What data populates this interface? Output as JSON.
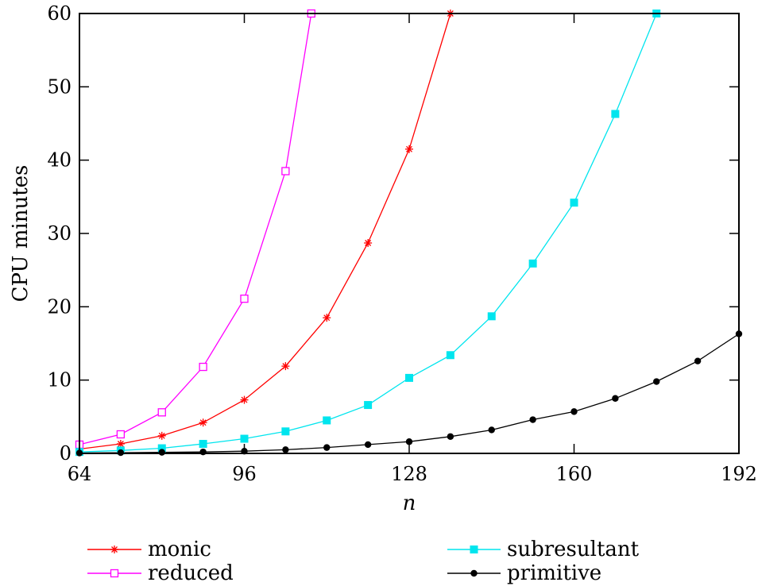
{
  "chart_data": {
    "type": "line",
    "title": "",
    "xlabel": "n",
    "ylabel": "CPU minutes",
    "xlim": [
      64,
      192
    ],
    "ylim": [
      0,
      60
    ],
    "xticks": [
      64,
      96,
      128,
      160,
      192
    ],
    "yticks": [
      0,
      10,
      20,
      30,
      40,
      50,
      60
    ],
    "grid": false,
    "legend_position": "bottom",
    "series": [
      {
        "name": "monic",
        "color": "#ff0000",
        "marker": "asterisk",
        "x": [
          64,
          72,
          80,
          88,
          96,
          104,
          112,
          120,
          128,
          136
        ],
        "y": [
          0.6,
          1.3,
          2.4,
          4.2,
          7.3,
          11.9,
          18.5,
          28.7,
          41.5,
          60
        ]
      },
      {
        "name": "reduced",
        "color": "#ff00ff",
        "marker": "open-square",
        "x": [
          64,
          72,
          80,
          88,
          96,
          104,
          109
        ],
        "y": [
          1.2,
          2.6,
          5.6,
          11.8,
          21.1,
          38.5,
          60
        ]
      },
      {
        "name": "subresultant",
        "color": "#00e5ee",
        "marker": "filled-square",
        "x": [
          64,
          72,
          80,
          88,
          96,
          104,
          112,
          120,
          128,
          136,
          144,
          152,
          160,
          168,
          176
        ],
        "y": [
          0.2,
          0.4,
          0.7,
          1.3,
          2.0,
          3.0,
          4.5,
          6.6,
          10.3,
          13.4,
          18.7,
          25.9,
          34.2,
          46.3,
          60
        ]
      },
      {
        "name": "primitive",
        "color": "#000000",
        "marker": "filled-circle",
        "x": [
          64,
          72,
          80,
          88,
          96,
          104,
          112,
          120,
          128,
          136,
          144,
          152,
          160,
          168,
          176,
          184,
          192
        ],
        "y": [
          0.05,
          0.1,
          0.15,
          0.2,
          0.3,
          0.5,
          0.8,
          1.2,
          1.6,
          2.3,
          3.2,
          4.6,
          5.7,
          7.5,
          9.8,
          12.6,
          16.3
        ]
      }
    ]
  }
}
